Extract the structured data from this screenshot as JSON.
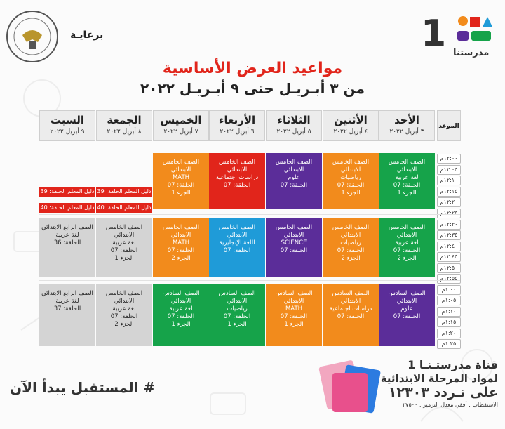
{
  "header": {
    "sponsor_label": "برعايـة",
    "logo_text": "مدرستنا",
    "channel_number": "1"
  },
  "title": "مواعيد العرض الأساسية",
  "subtitle": "من ٣ أبـريـل حتى ٩ أبـريـل ٢٠٢٢",
  "time_header": "الموعد",
  "days": [
    {
      "day": "الأحد",
      "date": "٣ أبريل ٢٠٢٢"
    },
    {
      "day": "الأثنين",
      "date": "٤ أبريل ٢٠٢٢"
    },
    {
      "day": "الثلاثاء",
      "date": "٥ أبريل ٢٠٢٢"
    },
    {
      "day": "الأربعاء",
      "date": "٦ أبريل ٢٠٢٢"
    },
    {
      "day": "الخميس",
      "date": "٧ أبريل ٢٠٢٢"
    },
    {
      "day": "الجمعة",
      "date": "٨ أبريل ٢٠٢٢"
    },
    {
      "day": "السبت",
      "date": "٩ أبريل ٢٠٢٢"
    }
  ],
  "times": [
    "١٢:٠٠م",
    "١٢:٠٥م",
    "١٢:١٠م",
    "١٢:١٥م",
    "١٢:٢٠م",
    "١٢:٢٥م",
    "١٢:٣٠م",
    "١٢:٣٥م",
    "١٢:٤٠م",
    "١٢:٤٥م",
    "١٢:٥٠م",
    "١٢:٥٥م",
    "١:٠٠م",
    "١:٠٥م",
    "١:١٠م",
    "١:١٥م",
    "١:٢٠م",
    "١:٢٥م"
  ],
  "block1": [
    {
      "color": "#16a34a",
      "lines": [
        "الصف الخامس الابتدائي",
        "لغة عربية",
        "الحلقة: 07",
        "الجزء 1"
      ]
    },
    {
      "color": "#f28b1c",
      "lines": [
        "الصف الخامس الابتدائي",
        "رياضيات",
        "الحلقة: 07",
        "الجزء 1"
      ]
    },
    {
      "color": "#5b2d99",
      "lines": [
        "الصف الخامس الابتدائي",
        "علوم",
        "الحلقة: 07"
      ]
    },
    {
      "color": "#e1251b",
      "lines": [
        "الصف الخامس الابتدائي",
        "دراسات اجتماعية",
        "الحلقة: 07"
      ]
    },
    {
      "color": "#f28b1c",
      "lines": [
        "الصف الخامس الابتدائي",
        "MATH",
        "الحلقة: 07",
        "الجزء 1"
      ]
    }
  ],
  "guide_bars": [
    "دليل المعلم الحلقة: 39",
    "دليل المعلم الحلقة: 39",
    "دليل المعلم الحلقة: 40",
    "دليل المعلم الحلقة: 40"
  ],
  "block2": [
    {
      "color": "#16a34a",
      "lines": [
        "الصف الخامس الابتدائي",
        "لغة عربية",
        "الحلقة: 07",
        "الجزء 2"
      ]
    },
    {
      "color": "#f28b1c",
      "lines": [
        "الصف الخامس الابتدائي",
        "رياضيات",
        "الحلقة: 07",
        "الجزء 2"
      ]
    },
    {
      "color": "#5b2d99",
      "lines": [
        "الصف الخامس الابتدائي",
        "SCIENCE",
        "الحلقة: 07"
      ]
    },
    {
      "color": "#1f9bd8",
      "lines": [
        "الصف الخامس الابتدائي",
        "اللغة الإنجليزية",
        "الحلقة: 07"
      ]
    },
    {
      "color": "#f28b1c",
      "lines": [
        "الصف الخامس الابتدائي",
        "MATH",
        "الحلقة: 07",
        "الجزء 2"
      ]
    },
    {
      "color": "#d4d4d4",
      "lines": [
        "الصف الخامس الابتدائي",
        "لغة عربية",
        "الحلقة: 07",
        "الجزء 1"
      ]
    },
    {
      "color": "#d4d4d4",
      "lines": [
        "الصف الرابع الابتدائي",
        "لغة عربية",
        "الحلقة: 36"
      ]
    }
  ],
  "block3": [
    {
      "color": "#5b2d99",
      "lines": [
        "الصف السادس الابتدائي",
        "علوم",
        "الحلقة: 07"
      ]
    },
    {
      "color": "#f28b1c",
      "lines": [
        "الصف السادس الابتدائي",
        "دراسات اجتماعية",
        "الحلقة: 07"
      ]
    },
    {
      "color": "#f28b1c",
      "lines": [
        "الصف السادس الابتدائي",
        "MATH",
        "الحلقة: 07",
        "الجزء 1"
      ]
    },
    {
      "color": "#16a34a",
      "lines": [
        "الصف السادس الابتدائي",
        "رياضيات",
        "الحلقة: 07",
        "الجزء 1"
      ]
    },
    {
      "color": "#16a34a",
      "lines": [
        "الصف السادس الابتدائي",
        "لغة عربية",
        "الحلقة: 07",
        "الجزء 1"
      ]
    },
    {
      "color": "#d4d4d4",
      "lines": [
        "الصف الخامس الابتدائي",
        "لغة عربية",
        "الحلقة: 07",
        "الجزء 2"
      ]
    },
    {
      "color": "#d4d4d4",
      "lines": [
        "الصف الرابع الابتدائي",
        "لغة عربية",
        "الحلقة: 37"
      ]
    }
  ],
  "footer": {
    "slogan": "# المستقبل يبدأ الآن",
    "channel_line": "قناة  مدرستـنـا 1",
    "channel_line2": "لمواد المرحلة الابتدائية",
    "frequency": "على تـردد ١٢٣٠٣",
    "reception": "الاستقطاب : أفقي معدل الترميز : ٢٧٥٠٠"
  },
  "colors": {
    "brand_red": "#e1251b",
    "green": "#16a34a",
    "orange": "#f28b1c",
    "purple": "#5b2d99",
    "blue": "#1f9bd8",
    "gray": "#d4d4d4"
  }
}
